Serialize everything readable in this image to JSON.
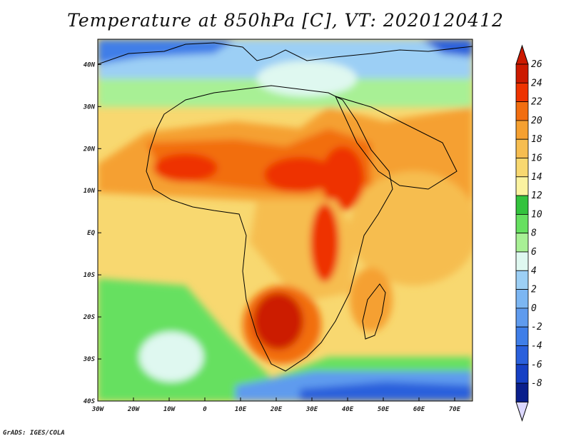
{
  "title": "Temperature at 850hPa [C], VT: 2020120412",
  "credit": "GrADS: IGES/COLA",
  "map": {
    "lon_range": [
      -30,
      75
    ],
    "lat_range": [
      -40,
      46
    ],
    "lon_ticks": [
      {
        "value": -30,
        "label": "30W"
      },
      {
        "value": -20,
        "label": "20W"
      },
      {
        "value": -10,
        "label": "10W"
      },
      {
        "value": 0,
        "label": "0"
      },
      {
        "value": 10,
        "label": "10E"
      },
      {
        "value": 20,
        "label": "20E"
      },
      {
        "value": 30,
        "label": "30E"
      },
      {
        "value": 40,
        "label": "40E"
      },
      {
        "value": 50,
        "label": "50E"
      },
      {
        "value": 60,
        "label": "60E"
      },
      {
        "value": 70,
        "label": "70E"
      }
    ],
    "lat_ticks": [
      {
        "value": 40,
        "label": "40N"
      },
      {
        "value": 30,
        "label": "30N"
      },
      {
        "value": 20,
        "label": "20N"
      },
      {
        "value": 10,
        "label": "10N"
      },
      {
        "value": 0,
        "label": "EQ"
      },
      {
        "value": -10,
        "label": "10S"
      },
      {
        "value": -20,
        "label": "20S"
      },
      {
        "value": -30,
        "label": "30S"
      },
      {
        "value": -40,
        "label": "40S"
      }
    ]
  },
  "colorbar": {
    "levels": [
      "26",
      "24",
      "22",
      "20",
      "18",
      "16",
      "14",
      "12",
      "10",
      "8",
      "6",
      "4",
      "2",
      "0",
      "-2",
      "-4",
      "-6",
      "-8"
    ],
    "colors_top_to_bottom": [
      "#cc1a00",
      "#ee3300",
      "#f26e10",
      "#f5a030",
      "#f6bd50",
      "#f8d870",
      "#fbf3a0",
      "#33c33d",
      "#66e060",
      "#a8f095",
      "#dff8f0",
      "#9ccff5",
      "#7cb6f2",
      "#5f9bee",
      "#3f7ee8",
      "#2a60dc",
      "#1640c4",
      "#0a1f8c"
    ],
    "lower_arrow_color": "#dcd8ff"
  }
}
